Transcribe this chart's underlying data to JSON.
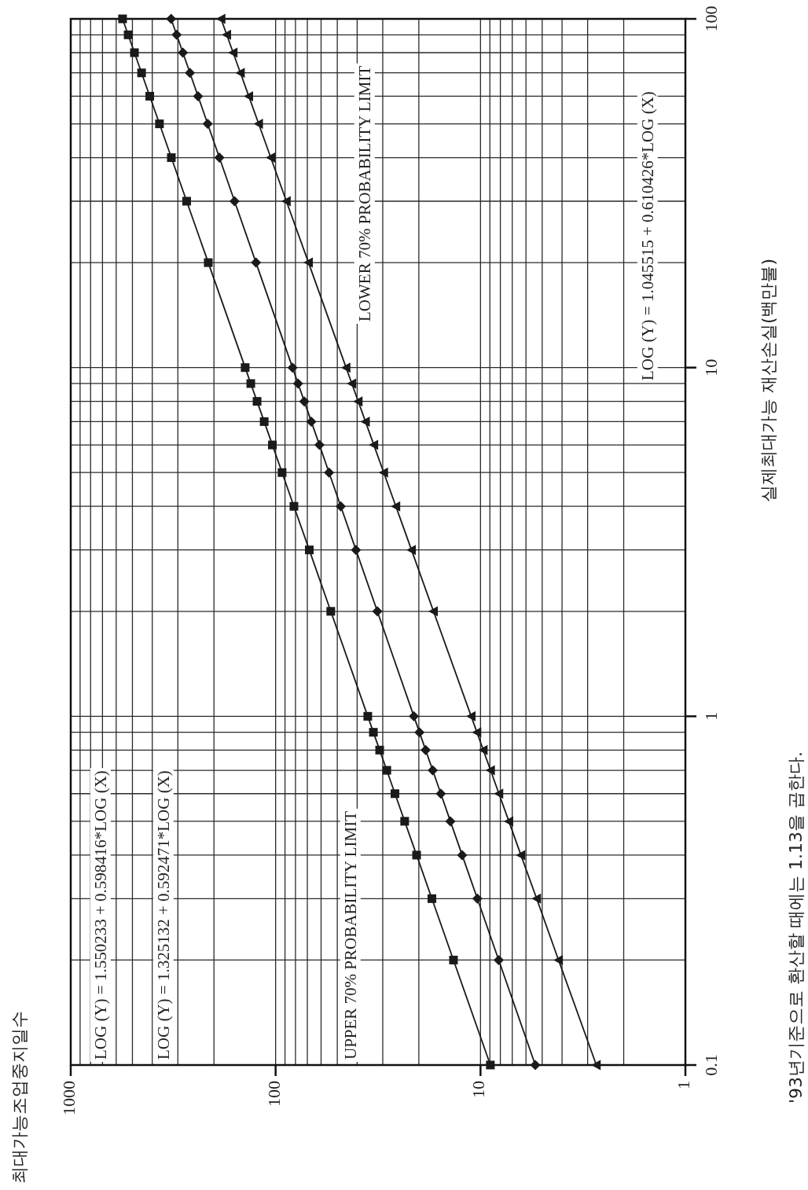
{
  "chart_data": {
    "type": "line",
    "title": "최대가능조업중지일수",
    "ylabel": "실제최대가능 재산손실(백만불)",
    "log": "xy",
    "grid": true,
    "xlim": [
      1000,
      1
    ],
    "ylim": [
      0.1,
      100
    ],
    "xticks": [
      1,
      {
        "value": 2,
        "label": null
      },
      {
        "value": 3,
        "label": null
      },
      {
        "value": 4,
        "label": null
      },
      {
        "value": 5,
        "label": null
      },
      {
        "value": 6,
        "label": null
      },
      {
        "value": 7,
        "label": null
      },
      {
        "value": 8,
        "label": null
      },
      {
        "value": 9,
        "label": null
      },
      10,
      {
        "value": 20,
        "label": null
      },
      {
        "value": 30,
        "label": null
      },
      {
        "value": 40,
        "label": null
      },
      {
        "value": 50,
        "label": null
      },
      {
        "value": 60,
        "label": null
      },
      {
        "value": 70,
        "label": null
      },
      {
        "value": 80,
        "label": null
      },
      {
        "value": 90,
        "label": null
      },
      100,
      {
        "value": 200,
        "label": null
      },
      {
        "value": 300,
        "label": null
      },
      {
        "value": 400,
        "label": null
      },
      {
        "value": 500,
        "label": null
      },
      {
        "value": 600,
        "label": null
      },
      {
        "value": 700,
        "label": null
      },
      {
        "value": 800,
        "label": null
      },
      {
        "value": 900,
        "label": null
      },
      1000
    ],
    "yticks": [
      0.1,
      {
        "value": 0.2,
        "label": null
      },
      {
        "value": 0.3,
        "label": null
      },
      {
        "value": 0.4,
        "label": null
      },
      {
        "value": 0.5,
        "label": null
      },
      {
        "value": 0.6,
        "label": null
      },
      {
        "value": 0.7,
        "label": null
      },
      {
        "value": 0.8,
        "label": null
      },
      {
        "value": 0.9,
        "label": null
      },
      1,
      {
        "value": 2,
        "label": null
      },
      {
        "value": 3,
        "label": null
      },
      {
        "value": 4,
        "label": null
      },
      {
        "value": 5,
        "label": null
      },
      {
        "value": 6,
        "label": null
      },
      {
        "value": 7,
        "label": null
      },
      {
        "value": 8,
        "label": null
      },
      {
        "value": 9,
        "label": null
      },
      10,
      {
        "value": 20,
        "label": null
      },
      {
        "value": 30,
        "label": null
      },
      {
        "value": 40,
        "label": null
      },
      {
        "value": 50,
        "label": null
      },
      {
        "value": 60,
        "label": null
      },
      {
        "value": 70,
        "label": null
      },
      {
        "value": 80,
        "label": null
      },
      {
        "value": 90,
        "label": null
      },
      100
    ],
    "series": [
      {
        "color": "#1a1a1a",
        "marker": "square",
        "x": [
          8.95,
          13.55,
          17.27,
          20.51,
          23.45,
          26.15,
          28.67,
          31.06,
          33.33,
          35.5,
          53.8,
          68.5,
          81.4,
          93.0,
          103.7,
          113.7,
          123.2,
          132.2,
          140.8,
          213.2,
          271.8,
          322.8,
          368.9,
          411.4,
          451.1,
          488.8,
          524.5,
          558.5
        ],
        "values": [
          0.1,
          0.2,
          0.3,
          0.4,
          0.5,
          0.6,
          0.7,
          0.8,
          0.9,
          1,
          2,
          3,
          4,
          5,
          6,
          7,
          8,
          9,
          10,
          20,
          30,
          40,
          50,
          60,
          70,
          80,
          90,
          100
        ]
      },
      {
        "color": "#1a1a1a",
        "marker": "diamond",
        "x": [
          5.4,
          8.15,
          10.36,
          12.29,
          14.03,
          15.62,
          17.11,
          18.52,
          19.86,
          21.14,
          31.88,
          40.54,
          48.07,
          54.87,
          61.11,
          66.95,
          72.47,
          77.69,
          82.7,
          124.7,
          158.6,
          188.1,
          214.7,
          239.1,
          262.0,
          283.5,
          304.1,
          323.7
        ],
        "values": [
          0.1,
          0.2,
          0.3,
          0.4,
          0.5,
          0.6,
          0.7,
          0.8,
          0.9,
          1,
          2,
          3,
          4,
          5,
          6,
          7,
          8,
          9,
          10,
          20,
          30,
          40,
          50,
          60,
          70,
          80,
          90,
          100
        ]
      },
      {
        "color": "#1a1a1a",
        "marker": "triangle",
        "x": [
          2.72,
          4.16,
          5.32,
          6.35,
          7.27,
          8.13,
          8.93,
          9.69,
          10.41,
          11.1,
          16.96,
          21.72,
          25.88,
          29.67,
          33.16,
          36.43,
          39.53,
          42.46,
          45.3,
          69.1,
          88.6,
          105.6,
          121.0,
          135.2,
          148.5,
          161.2,
          173.2,
          184.6
        ],
        "values": [
          0.1,
          0.2,
          0.3,
          0.4,
          0.5,
          0.6,
          0.7,
          0.8,
          0.9,
          1,
          2,
          3,
          4,
          5,
          6,
          7,
          8,
          9,
          10,
          20,
          30,
          40,
          50,
          60,
          70,
          80,
          90,
          100
        ]
      }
    ],
    "annotations": [
      "LOG (Y) = 1.550233 + 0.598416*LOG (X)",
      "LOG (Y) = 1.325132 + 0.592471*LOG (X)",
      "UPPER 70% PROBABILITY LIMIT",
      "LOWER 70% PROBABILITY LIMIT",
      "LOG (Y) = 1.045515 + 0.610426*LOG (X)",
      "'93년기준으로 환산할 때에는 1.13을 곱한다."
    ]
  }
}
